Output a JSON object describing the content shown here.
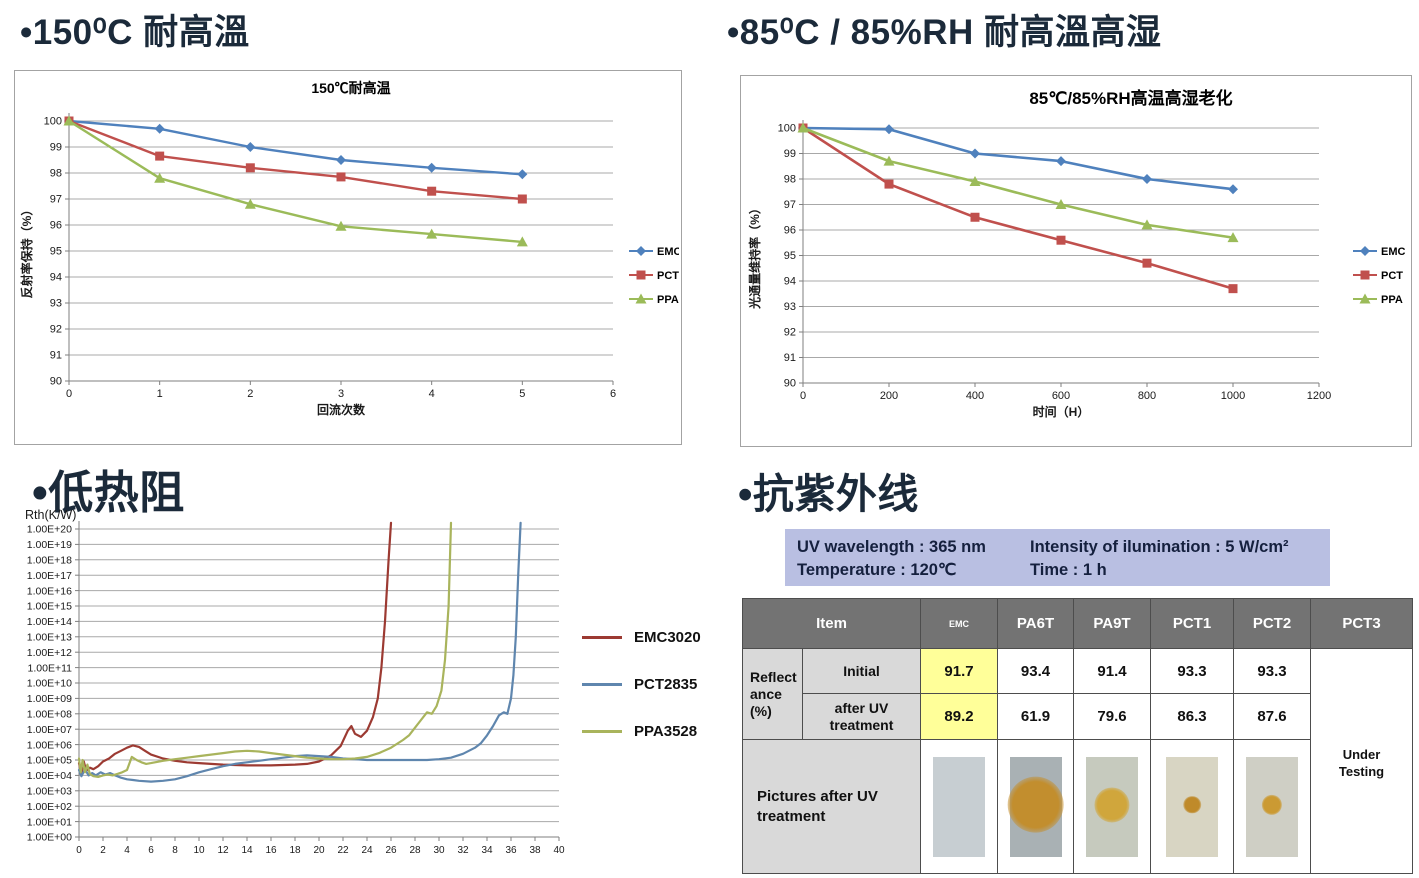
{
  "headings": {
    "tl": "•150⁰C 耐高溫",
    "tr": "•85⁰C / 85%RH 耐高溫高湿",
    "bl": "•低热阻",
    "br": "•抗紫外线"
  },
  "chart_data": [
    {
      "type": "line",
      "title": "150℃耐高温",
      "xlabel": "回流次数",
      "ylabel": "反射率保持（%）",
      "xlim": [
        0,
        6
      ],
      "ylim": [
        90,
        100
      ],
      "xticks": [
        0,
        1,
        2,
        3,
        4,
        5,
        6
      ],
      "yticks": [
        90,
        91,
        92,
        93,
        94,
        95,
        96,
        97,
        98,
        99,
        100
      ],
      "grid": true,
      "legend_position": "right",
      "x": [
        0,
        1,
        2,
        3,
        4,
        5
      ],
      "series": [
        {
          "name": "EMC",
          "color": "#4f81bd",
          "marker": "diamond",
          "values": [
            100,
            99.7,
            99.0,
            98.5,
            98.2,
            97.95
          ]
        },
        {
          "name": "PCT",
          "color": "#c0504d",
          "marker": "square",
          "values": [
            100,
            98.65,
            98.2,
            97.85,
            97.3,
            97.0
          ]
        },
        {
          "name": "PPA",
          "color": "#9bbb59",
          "marker": "triangle",
          "values": [
            100,
            97.8,
            96.8,
            95.95,
            95.65,
            95.35
          ]
        }
      ]
    },
    {
      "type": "line",
      "title": "85℃/85%RH高温高湿老化",
      "xlabel": "时间（H）",
      "ylabel": "光通量维持率（%）",
      "xlim": [
        0,
        1200
      ],
      "ylim": [
        90,
        100
      ],
      "xticks": [
        0,
        200,
        400,
        600,
        800,
        1000,
        1200
      ],
      "yticks": [
        90,
        91,
        92,
        93,
        94,
        95,
        96,
        97,
        98,
        99,
        100
      ],
      "grid": true,
      "legend_position": "right",
      "x": [
        0,
        200,
        400,
        600,
        800,
        1000
      ],
      "series": [
        {
          "name": "EMC",
          "color": "#4f81bd",
          "marker": "diamond",
          "values": [
            100,
            99.95,
            99.0,
            98.7,
            98.0,
            97.6
          ]
        },
        {
          "name": "PCT",
          "color": "#c0504d",
          "marker": "square",
          "values": [
            100,
            97.8,
            96.5,
            95.6,
            94.7,
            93.7
          ]
        },
        {
          "name": "PPA",
          "color": "#9bbb59",
          "marker": "triangle",
          "values": [
            100,
            98.7,
            97.9,
            97.0,
            96.2,
            95.7
          ]
        }
      ]
    },
    {
      "type": "line",
      "title": "",
      "ylabel_top": "Rth(K/W)",
      "yscale": "log10",
      "xlim": [
        0,
        40
      ],
      "ylim": [
        0,
        20
      ],
      "xticks": [
        0,
        2,
        4,
        6,
        8,
        10,
        12,
        14,
        16,
        18,
        20,
        22,
        24,
        26,
        28,
        30,
        32,
        34,
        36,
        38,
        40
      ],
      "yticks": [
        0,
        1,
        2,
        3,
        4,
        5,
        6,
        7,
        8,
        9,
        10,
        11,
        12,
        13,
        14,
        15,
        16,
        17,
        18,
        19,
        20
      ],
      "ytick_labels": [
        "1.00E+00",
        "1.00E+01",
        "1.00E+02",
        "1.00E+03",
        "1.00E+04",
        "1.00E+05",
        "1.00E+06",
        "1.00E+07",
        "1.00E+08",
        "1.00E+09",
        "1.00E+10",
        "1.00E+11",
        "1.00E+12",
        "1.00E+13",
        "1.00E+14",
        "1.00E+15",
        "1.00E+16",
        "1.00E+17",
        "1.00E+18",
        "1.00E+19",
        "1.00E+20"
      ],
      "grid": true,
      "legend_position": "right",
      "series": [
        {
          "name": "EMC3020",
          "color": "#9c3a32",
          "points": [
            [
              0,
              4.8
            ],
            [
              0.2,
              4.1
            ],
            [
              0.4,
              4.9
            ],
            [
              0.6,
              4.3
            ],
            [
              0.9,
              4.5
            ],
            [
              1.2,
              4.4
            ],
            [
              1.6,
              4.6
            ],
            [
              2,
              4.9
            ],
            [
              2.5,
              5.1
            ],
            [
              3,
              5.4
            ],
            [
              3.5,
              5.6
            ],
            [
              4,
              5.8
            ],
            [
              4.5,
              5.95
            ],
            [
              5,
              5.85
            ],
            [
              5.5,
              5.6
            ],
            [
              6,
              5.35
            ],
            [
              7,
              5.1
            ],
            [
              8,
              4.95
            ],
            [
              9,
              4.85
            ],
            [
              10,
              4.8
            ],
            [
              12,
              4.7
            ],
            [
              14,
              4.65
            ],
            [
              16,
              4.65
            ],
            [
              18,
              4.7
            ],
            [
              19,
              4.75
            ],
            [
              20,
              4.9
            ],
            [
              21,
              5.3
            ],
            [
              21.8,
              5.9
            ],
            [
              22.4,
              6.9
            ],
            [
              22.7,
              7.2
            ],
            [
              23,
              6.7
            ],
            [
              23.5,
              6.5
            ],
            [
              24,
              6.9
            ],
            [
              24.5,
              7.8
            ],
            [
              24.9,
              9
            ],
            [
              25.2,
              11
            ],
            [
              25.5,
              14
            ],
            [
              25.8,
              18
            ],
            [
              26,
              20.4
            ]
          ]
        },
        {
          "name": "PCT2835",
          "color": "#5f86ae",
          "points": [
            [
              0,
              4.35
            ],
            [
              0.2,
              3.95
            ],
            [
              0.5,
              4.4
            ],
            [
              0.8,
              4.0
            ],
            [
              1.1,
              4.15
            ],
            [
              1.4,
              4.0
            ],
            [
              1.8,
              4.2
            ],
            [
              2.2,
              4.05
            ],
            [
              2.6,
              4.15
            ],
            [
              3,
              4.0
            ],
            [
              3.5,
              3.85
            ],
            [
              4,
              3.75
            ],
            [
              4.5,
              3.7
            ],
            [
              5,
              3.65
            ],
            [
              6,
              3.6
            ],
            [
              7,
              3.65
            ],
            [
              8,
              3.75
            ],
            [
              9,
              3.95
            ],
            [
              10,
              4.2
            ],
            [
              11,
              4.4
            ],
            [
              12,
              4.6
            ],
            [
              13,
              4.75
            ],
            [
              14,
              4.85
            ],
            [
              15,
              4.95
            ],
            [
              16,
              5.05
            ],
            [
              17,
              5.15
            ],
            [
              18,
              5.25
            ],
            [
              19,
              5.3
            ],
            [
              20,
              5.25
            ],
            [
              21,
              5.2
            ],
            [
              22,
              5.1
            ],
            [
              23,
              5.05
            ],
            [
              24,
              5.0
            ],
            [
              25,
              5.0
            ],
            [
              26,
              5.0
            ],
            [
              27,
              5.0
            ],
            [
              28,
              5.0
            ],
            [
              29,
              5.0
            ],
            [
              30,
              5.05
            ],
            [
              31,
              5.15
            ],
            [
              32,
              5.4
            ],
            [
              33,
              5.8
            ],
            [
              33.5,
              6.1
            ],
            [
              34,
              6.6
            ],
            [
              34.5,
              7.2
            ],
            [
              35,
              7.9
            ],
            [
              35.4,
              8.1
            ],
            [
              35.7,
              8.0
            ],
            [
              36,
              9.0
            ],
            [
              36.2,
              10.5
            ],
            [
              36.4,
              13
            ],
            [
              36.6,
              17
            ],
            [
              36.8,
              20.4
            ]
          ]
        },
        {
          "name": "PPA3528",
          "color": "#a9b45c",
          "points": [
            [
              0,
              5.1
            ],
            [
              0.15,
              4.2
            ],
            [
              0.3,
              5.0
            ],
            [
              0.5,
              4.2
            ],
            [
              0.7,
              4.7
            ],
            [
              0.9,
              4.1
            ],
            [
              1.2,
              3.95
            ],
            [
              1.6,
              3.9
            ],
            [
              2,
              4.0
            ],
            [
              2.4,
              4.05
            ],
            [
              2.8,
              4.0
            ],
            [
              3.2,
              4.1
            ],
            [
              3.6,
              4.2
            ],
            [
              4,
              4.35
            ],
            [
              4.4,
              5.2
            ],
            [
              4.8,
              5.0
            ],
            [
              5.2,
              4.85
            ],
            [
              5.6,
              4.75
            ],
            [
              6,
              4.8
            ],
            [
              7,
              4.95
            ],
            [
              8,
              5.05
            ],
            [
              9,
              5.15
            ],
            [
              10,
              5.25
            ],
            [
              11,
              5.35
            ],
            [
              12,
              5.45
            ],
            [
              13,
              5.55
            ],
            [
              14,
              5.6
            ],
            [
              15,
              5.55
            ],
            [
              16,
              5.45
            ],
            [
              17,
              5.35
            ],
            [
              18,
              5.25
            ],
            [
              19,
              5.15
            ],
            [
              20,
              5.1
            ],
            [
              21,
              5.05
            ],
            [
              22,
              5.05
            ],
            [
              23,
              5.1
            ],
            [
              24,
              5.2
            ],
            [
              25,
              5.45
            ],
            [
              26,
              5.8
            ],
            [
              27,
              6.3
            ],
            [
              27.5,
              6.6
            ],
            [
              28,
              7.1
            ],
            [
              28.5,
              7.6
            ],
            [
              29,
              8.1
            ],
            [
              29.4,
              8.0
            ],
            [
              29.8,
              8.5
            ],
            [
              30.2,
              9.5
            ],
            [
              30.5,
              11.5
            ],
            [
              30.8,
              15
            ],
            [
              31,
              20.4
            ]
          ]
        }
      ]
    }
  ],
  "uv": {
    "conditions": {
      "left": "UV wavelength : 365 nm\nTemperature : 120℃",
      "right": "Intensity of ilumination : 5 W/cm²\nTime : 1 h"
    },
    "table": {
      "header": {
        "item": "Item",
        "cols": [
          "EMC",
          "PA6T",
          "PA9T",
          "PCT1",
          "PCT2",
          "PCT3"
        ]
      },
      "reflectance_label": "Reflect\nance\n(%)",
      "rows": [
        {
          "label": "Initial",
          "values": [
            "91.7",
            "93.4",
            "91.4",
            "93.3",
            "93.3"
          ]
        },
        {
          "label": "after UV\ntreatment",
          "values": [
            "89.2",
            "61.9",
            "79.6",
            "86.3",
            "87.6"
          ]
        }
      ],
      "pictures_label": "Pictures after UV\ntreatment",
      "pct3_status": "Under\nTesting",
      "highlight_color": "#ffff99",
      "pictures": [
        {
          "name": "EMC",
          "bg": "#c7ced2",
          "spot_color": null,
          "spot_size": 0
        },
        {
          "name": "PA6T",
          "bg": "#a9b1b4",
          "spot_color": "#c28e2e",
          "spot_size": 42
        },
        {
          "name": "PA9T",
          "bg": "#c6cabe",
          "spot_color": "#d0a63c",
          "spot_size": 26
        },
        {
          "name": "PCT1",
          "bg": "#d8d5c3",
          "spot_color": "#bf8a2a",
          "spot_size": 13
        },
        {
          "name": "PCT2",
          "bg": "#cfcfc5",
          "spot_color": "#cb9a33",
          "spot_size": 15
        }
      ]
    }
  }
}
